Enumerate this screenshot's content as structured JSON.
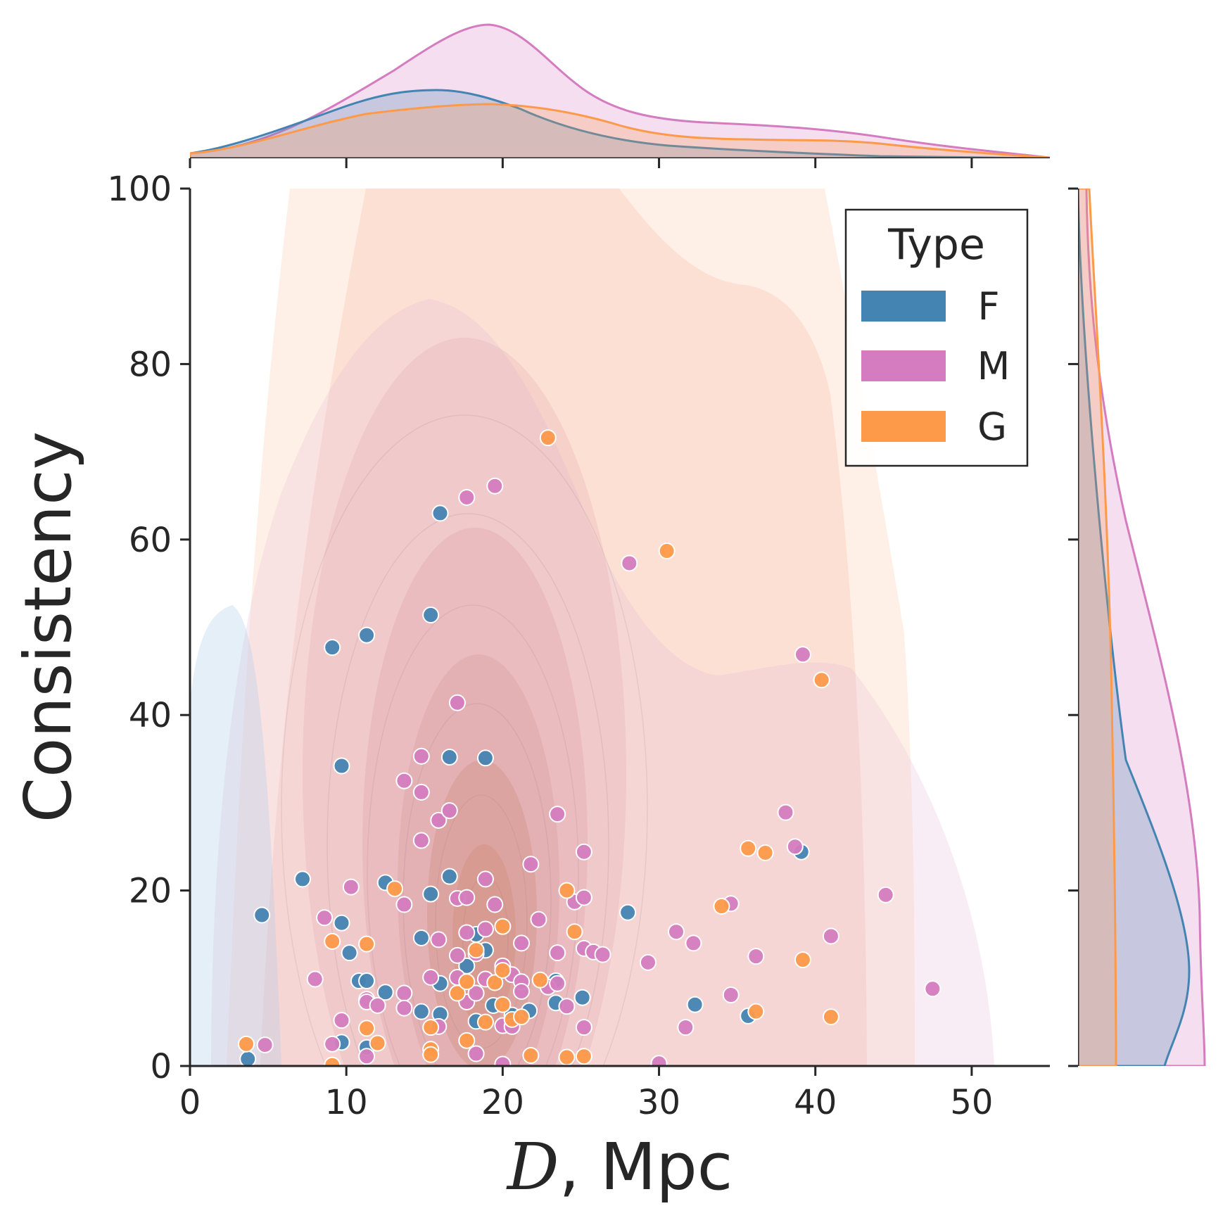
{
  "chart_data": {
    "type": "scatter",
    "title": "",
    "xlabel": "D, Mpc",
    "xlabel_var": "D",
    "xlabel_unit": ", Mpc",
    "ylabel": "Consistency",
    "xlim": [
      0,
      55
    ],
    "ylim": [
      0,
      100
    ],
    "xticks": [
      "0",
      "10",
      "20",
      "30",
      "40",
      "50"
    ],
    "yticks": [
      "0",
      "20",
      "40",
      "60",
      "80",
      "100"
    ],
    "grid": false,
    "legend": {
      "title": "Type",
      "placement": "top-right",
      "entries": [
        "F",
        "M",
        "G"
      ]
    },
    "marginals": {
      "top": "kde of D by Type",
      "right": "kde of Consistency by Type"
    },
    "series": [
      {
        "name": "F",
        "color": "#4484b2",
        "points": [
          [
            3.7,
            0.8
          ],
          [
            4.6,
            17.2
          ],
          [
            7.2,
            21.3
          ],
          [
            9.1,
            47.7
          ],
          [
            9.7,
            34.2
          ],
          [
            9.7,
            16.3
          ],
          [
            9.7,
            2.7
          ],
          [
            10.2,
            12.9
          ],
          [
            10.8,
            9.7
          ],
          [
            11.3,
            49.1
          ],
          [
            11.3,
            9.7
          ],
          [
            11.3,
            2.1
          ],
          [
            12.5,
            8.4
          ],
          [
            12.5,
            20.9
          ],
          [
            14.8,
            14.6
          ],
          [
            14.8,
            6.2
          ],
          [
            15.4,
            51.4
          ],
          [
            15.4,
            19.6
          ],
          [
            16.0,
            63.0
          ],
          [
            16.0,
            9.4
          ],
          [
            16.0,
            5.9
          ],
          [
            16.6,
            35.2
          ],
          [
            16.6,
            21.6
          ],
          [
            17.7,
            11.4
          ],
          [
            18.3,
            15.0
          ],
          [
            18.3,
            5.1
          ],
          [
            18.9,
            35.1
          ],
          [
            18.9,
            13.2
          ],
          [
            19.4,
            6.9
          ],
          [
            20.6,
            5.8
          ],
          [
            21.7,
            6.3
          ],
          [
            23.4,
            9.7
          ],
          [
            23.4,
            7.2
          ],
          [
            25.1,
            7.8
          ],
          [
            28.0,
            17.5
          ],
          [
            32.3,
            7.0
          ],
          [
            35.7,
            5.7
          ],
          [
            39.1,
            24.4
          ]
        ]
      },
      {
        "name": "M",
        "color": "#d47cbf",
        "points": [
          [
            4.8,
            2.4
          ],
          [
            8.0,
            9.9
          ],
          [
            8.6,
            16.9
          ],
          [
            9.1,
            2.5
          ],
          [
            9.7,
            5.2
          ],
          [
            10.3,
            20.4
          ],
          [
            11.3,
            7.6
          ],
          [
            11.3,
            7.3
          ],
          [
            11.3,
            1.1
          ],
          [
            12.0,
            6.9
          ],
          [
            13.7,
            32.5
          ],
          [
            13.7,
            18.4
          ],
          [
            13.7,
            8.3
          ],
          [
            13.7,
            6.6
          ],
          [
            14.8,
            35.3
          ],
          [
            14.8,
            31.2
          ],
          [
            14.8,
            25.7
          ],
          [
            15.4,
            10.1
          ],
          [
            15.9,
            28.0
          ],
          [
            15.9,
            14.4
          ],
          [
            15.9,
            4.5
          ],
          [
            16.6,
            29.1
          ],
          [
            17.1,
            41.4
          ],
          [
            17.1,
            19.1
          ],
          [
            17.1,
            12.6
          ],
          [
            17.1,
            10.1
          ],
          [
            17.7,
            64.8
          ],
          [
            17.7,
            19.2
          ],
          [
            17.7,
            15.2
          ],
          [
            17.7,
            7.3
          ],
          [
            18.3,
            12.8
          ],
          [
            18.3,
            8.3
          ],
          [
            18.3,
            1.4
          ],
          [
            18.9,
            21.3
          ],
          [
            18.9,
            15.6
          ],
          [
            18.9,
            9.9
          ],
          [
            19.5,
            66.1
          ],
          [
            19.5,
            18.4
          ],
          [
            20.0,
            11.4
          ],
          [
            20.0,
            4.6
          ],
          [
            20.0,
            0.2
          ],
          [
            20.6,
            10.4
          ],
          [
            20.6,
            4.5
          ],
          [
            21.2,
            14.0
          ],
          [
            21.2,
            9.6
          ],
          [
            21.2,
            8.5
          ],
          [
            21.8,
            23.0
          ],
          [
            22.3,
            16.7
          ],
          [
            22.9,
            9.0
          ],
          [
            23.5,
            28.7
          ],
          [
            23.5,
            12.9
          ],
          [
            23.5,
            9.4
          ],
          [
            24.1,
            6.8
          ],
          [
            24.6,
            18.7
          ],
          [
            25.2,
            24.4
          ],
          [
            25.2,
            19.2
          ],
          [
            25.2,
            13.4
          ],
          [
            25.2,
            4.4
          ],
          [
            25.8,
            13.0
          ],
          [
            26.4,
            12.7
          ],
          [
            28.1,
            57.3
          ],
          [
            29.3,
            11.8
          ],
          [
            30.0,
            0.3
          ],
          [
            31.1,
            15.3
          ],
          [
            31.7,
            4.4
          ],
          [
            32.2,
            14.0
          ],
          [
            34.6,
            18.5
          ],
          [
            34.6,
            8.1
          ],
          [
            36.2,
            12.5
          ],
          [
            38.1,
            28.9
          ],
          [
            38.7,
            25.0
          ],
          [
            39.2,
            46.9
          ],
          [
            41.0,
            14.8
          ],
          [
            44.5,
            19.5
          ],
          [
            47.5,
            8.8
          ]
        ]
      },
      {
        "name": "G",
        "color": "#fd9a4a",
        "points": [
          [
            3.6,
            2.5
          ],
          [
            9.1,
            14.2
          ],
          [
            9.1,
            0.1
          ],
          [
            11.3,
            13.9
          ],
          [
            11.3,
            4.3
          ],
          [
            12.0,
            2.6
          ],
          [
            13.1,
            20.2
          ],
          [
            15.4,
            4.4
          ],
          [
            15.4,
            1.9
          ],
          [
            15.4,
            1.3
          ],
          [
            17.1,
            8.3
          ],
          [
            17.7,
            9.6
          ],
          [
            17.7,
            2.9
          ],
          [
            18.3,
            13.2
          ],
          [
            18.9,
            5.0
          ],
          [
            19.5,
            9.5
          ],
          [
            20.0,
            15.9
          ],
          [
            20.0,
            10.9
          ],
          [
            20.0,
            7.0
          ],
          [
            20.6,
            5.3
          ],
          [
            21.2,
            5.6
          ],
          [
            21.8,
            1.2
          ],
          [
            22.4,
            9.8
          ],
          [
            22.9,
            71.6
          ],
          [
            24.1,
            20.0
          ],
          [
            24.1,
            1.0
          ],
          [
            24.6,
            15.3
          ],
          [
            25.2,
            1.1
          ],
          [
            30.5,
            58.7
          ],
          [
            34.0,
            18.2
          ],
          [
            35.7,
            24.8
          ],
          [
            36.2,
            6.2
          ],
          [
            36.8,
            24.3
          ],
          [
            39.2,
            12.1
          ],
          [
            40.4,
            44.0
          ],
          [
            41.0,
            5.6
          ]
        ]
      }
    ]
  }
}
